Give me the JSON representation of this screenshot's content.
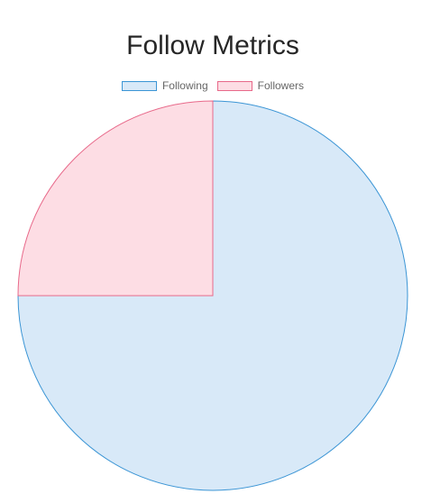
{
  "chart_data": {
    "type": "pie",
    "title": "Follow Metrics",
    "legend_position": "top",
    "series": [
      {
        "name": "Following",
        "value": 75,
        "fill": "#d8e9f8",
        "stroke": "#3b95d5"
      },
      {
        "name": "Followers",
        "value": 25,
        "fill": "#fddde4",
        "stroke": "#e8698a"
      }
    ]
  }
}
